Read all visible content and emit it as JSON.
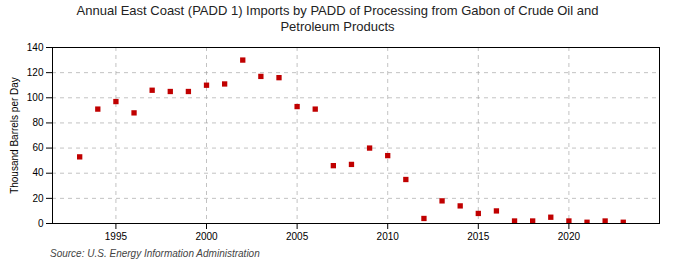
{
  "chart_data": {
    "type": "scatter",
    "title": "Annual East Coast (PADD 1) Imports by PADD of Processing from Gabon of Crude Oil and\nPetroleum Products",
    "ylabel": "Thousand Barrels per Day",
    "source": "Source: U.S. Energy Information Administration",
    "x": [
      1993,
      1994,
      1995,
      1996,
      1997,
      1998,
      1999,
      2000,
      2001,
      2002,
      2003,
      2004,
      2005,
      2006,
      2007,
      2008,
      2009,
      2010,
      2011,
      2012,
      2013,
      2014,
      2015,
      2016,
      2017,
      2018,
      2019,
      2020,
      2021,
      2022,
      2023
    ],
    "values": [
      53,
      91,
      97,
      88,
      106,
      105,
      105,
      110,
      111,
      130,
      117,
      116,
      93,
      91,
      46,
      47,
      60,
      54,
      35,
      4,
      18,
      14,
      8,
      10,
      2,
      2,
      5,
      2,
      1,
      2,
      1
    ],
    "color": "#c00000",
    "marker": "square",
    "xlim": [
      1991.5,
      2025
    ],
    "ylim": [
      0,
      140
    ],
    "xticks": [
      1995,
      2000,
      2005,
      2010,
      2015,
      2020
    ],
    "yticks": [
      0,
      20,
      40,
      60,
      80,
      100,
      120,
      140
    ],
    "grid": true
  }
}
